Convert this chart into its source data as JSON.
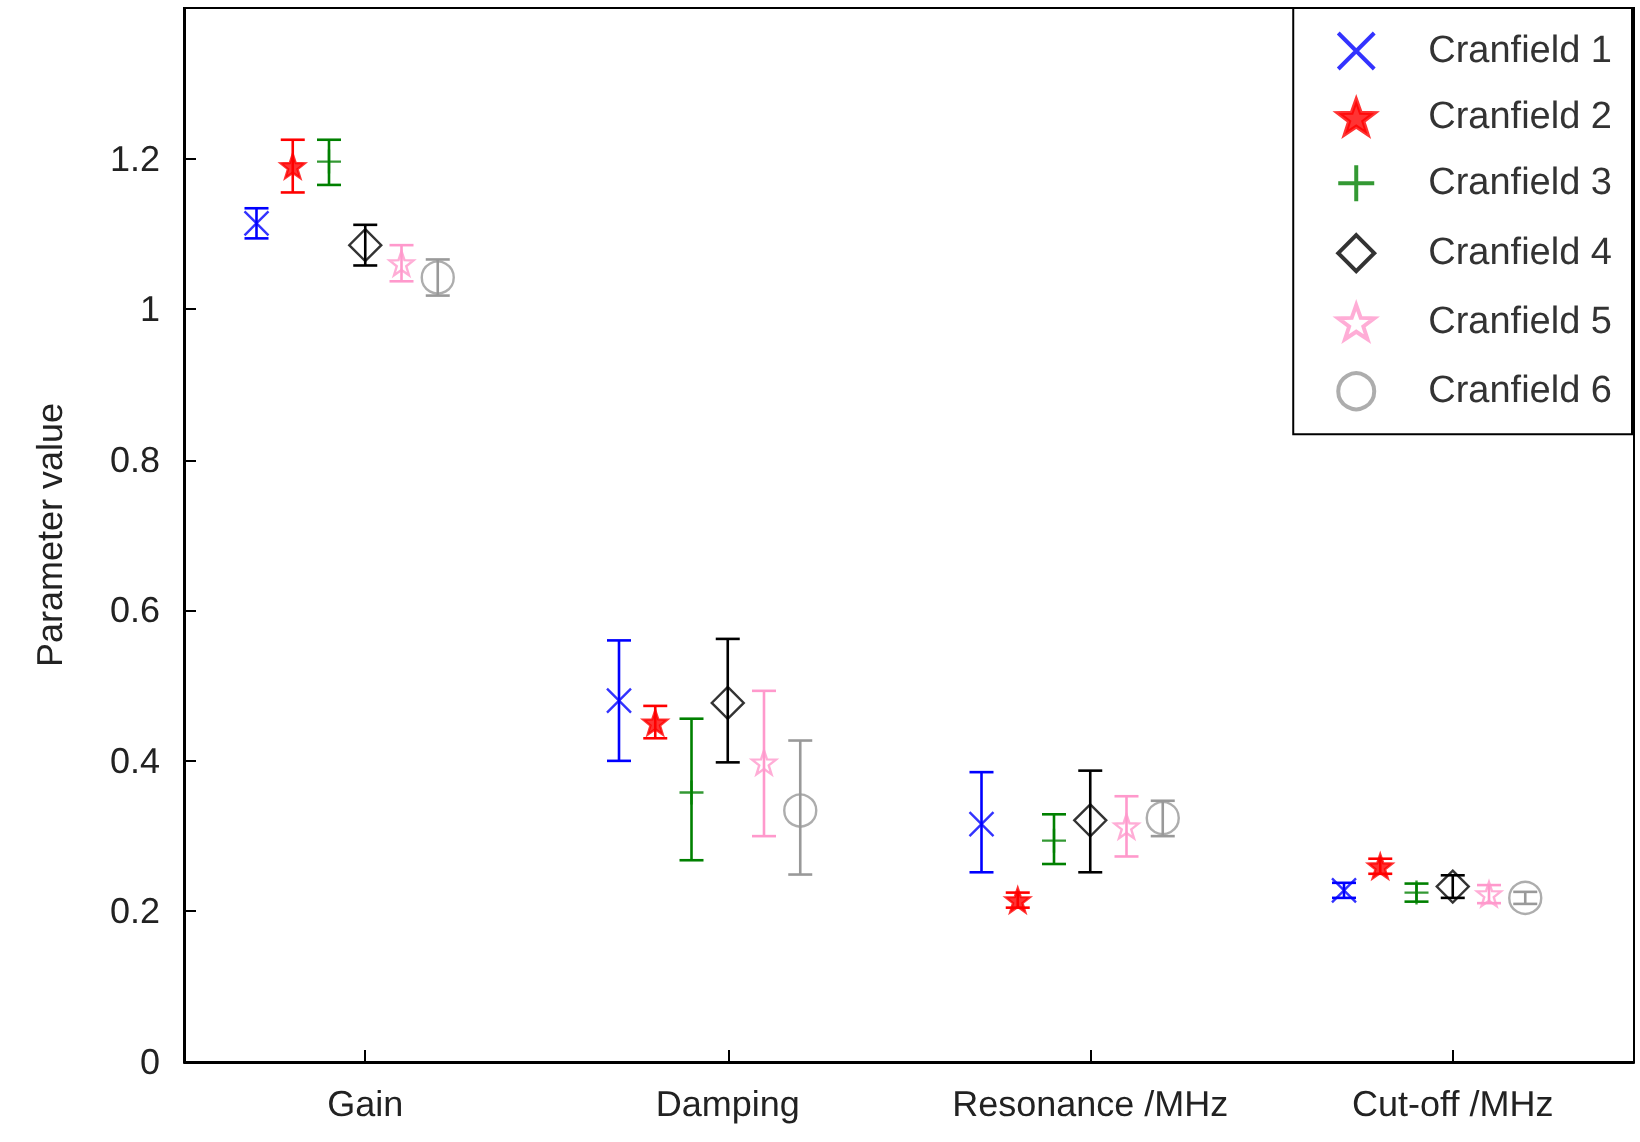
{
  "chart_data": {
    "type": "scatter",
    "ylabel": "Parameter value",
    "categories": [
      "Gain",
      "Damping",
      "Resonance /MHz",
      "Cut-off /MHz"
    ],
    "ylim": [
      0,
      1.4
    ],
    "yticks": [
      0,
      0.2,
      0.4,
      0.6,
      0.8,
      1,
      1.2
    ],
    "grid": false,
    "legend": "top right",
    "series": [
      {
        "name": "Cranfield 1",
        "color": "#0000ff",
        "marker": "x",
        "values": [
          1.114,
          0.48,
          0.316,
          0.228
        ],
        "errors": [
          [
            1.094,
            1.134
          ],
          [
            0.4,
            0.56
          ],
          [
            0.252,
            0.385
          ],
          [
            0.218,
            0.238
          ]
        ]
      },
      {
        "name": "Cranfield 2",
        "color": "#ff0000",
        "marker": "star",
        "values": [
          1.19,
          0.451,
          0.215,
          0.26
        ],
        "errors": [
          [
            1.155,
            1.225
          ],
          [
            0.43,
            0.473
          ],
          [
            0.205,
            0.225
          ],
          [
            0.25,
            0.27
          ]
        ]
      },
      {
        "name": "Cranfield 3",
        "color": "#008000",
        "marker": "plus",
        "values": [
          1.196,
          0.358,
          0.294,
          0.225
        ],
        "errors": [
          [
            1.165,
            1.225
          ],
          [
            0.268,
            0.456
          ],
          [
            0.263,
            0.329
          ],
          [
            0.213,
            0.237
          ]
        ]
      },
      {
        "name": "Cranfield 4",
        "color": "#000000",
        "marker": "diamond",
        "values": [
          1.085,
          0.477,
          0.321,
          0.233
        ],
        "errors": [
          [
            1.058,
            1.112
          ],
          [
            0.398,
            0.562
          ],
          [
            0.252,
            0.387
          ],
          [
            0.218,
            0.248
          ]
        ]
      },
      {
        "name": "Cranfield 5",
        "color": "#ff99cc",
        "marker": "star",
        "values": [
          1.061,
          0.398,
          0.313,
          0.223
        ],
        "errors": [
          [
            1.037,
            1.085
          ],
          [
            0.3,
            0.493
          ],
          [
            0.273,
            0.353
          ],
          [
            0.211,
            0.235
          ]
        ]
      },
      {
        "name": "Cranfield 6",
        "color": "#999999",
        "marker": "circle",
        "values": [
          1.042,
          0.334,
          0.324,
          0.218
        ],
        "errors": [
          [
            1.018,
            1.066
          ],
          [
            0.249,
            0.427
          ],
          [
            0.3,
            0.347
          ],
          [
            0.21,
            0.226
          ]
        ]
      }
    ]
  }
}
